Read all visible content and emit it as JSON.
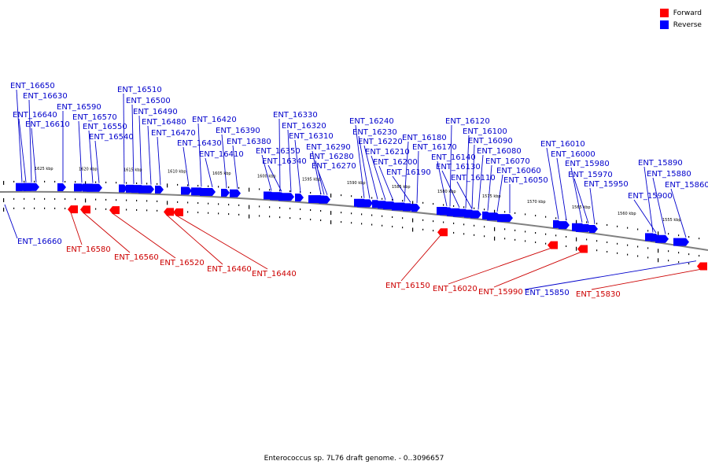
{
  "legend": {
    "forward_label": "Forward",
    "reverse_label": "Reverse",
    "forward_color": "#ff0000",
    "reverse_color": "#0000ff"
  },
  "caption": "Enterococcus sp. 7L76 draft genome. - 0..3096657",
  "line_colors": {
    "forward_label_line": "#cc0000",
    "reverse_label_line": "#0000cc",
    "backbone": "#808080",
    "tick": "#000000"
  },
  "scale_labels": [
    "1625 kbp",
    "1620 kbp",
    "1615 kbp",
    "1610 kbp",
    "1605 kbp",
    "1600 kbp",
    "1595 kbp",
    "1590 kbp",
    "1585 kbp",
    "1580 kbp",
    "1575 kbp",
    "1570 kbp",
    "1565 kbp",
    "1560 kbp",
    "1555 kbp"
  ],
  "reverse_genes": [
    "ENT_16650",
    "ENT_16630",
    "ENT_16640",
    "ENT_16610",
    "ENT_16590",
    "ENT_16570",
    "ENT_16550",
    "ENT_16540",
    "ENT_16510",
    "ENT_16500",
    "ENT_16490",
    "ENT_16480",
    "ENT_16470",
    "ENT_16430",
    "ENT_16420",
    "ENT_16410",
    "ENT_16390",
    "ENT_16380",
    "ENT_16330",
    "ENT_16320",
    "ENT_16310",
    "ENT_16350",
    "ENT_16340",
    "ENT_16290",
    "ENT_16280",
    "ENT_16270",
    "ENT_16240",
    "ENT_16230",
    "ENT_16220",
    "ENT_16210",
    "ENT_16200",
    "ENT_16180",
    "ENT_16170",
    "ENT_16190",
    "ENT_16120",
    "ENT_16100",
    "ENT_16090",
    "ENT_16080",
    "ENT_16140",
    "ENT_16130",
    "ENT_16070",
    "ENT_16110",
    "ENT_16060",
    "ENT_16050",
    "ENT_16010",
    "ENT_16000",
    "ENT_15980",
    "ENT_15970",
    "ENT_15950",
    "ENT_15890",
    "ENT_15880",
    "ENT_15860",
    "ENT_15900",
    "ENT_16660",
    "ENT_15850"
  ],
  "forward_genes": [
    "ENT_16580",
    "ENT_16560",
    "ENT_16520",
    "ENT_16460",
    "ENT_16440",
    "ENT_16150",
    "ENT_16020",
    "ENT_15990",
    "ENT_15830"
  ]
}
